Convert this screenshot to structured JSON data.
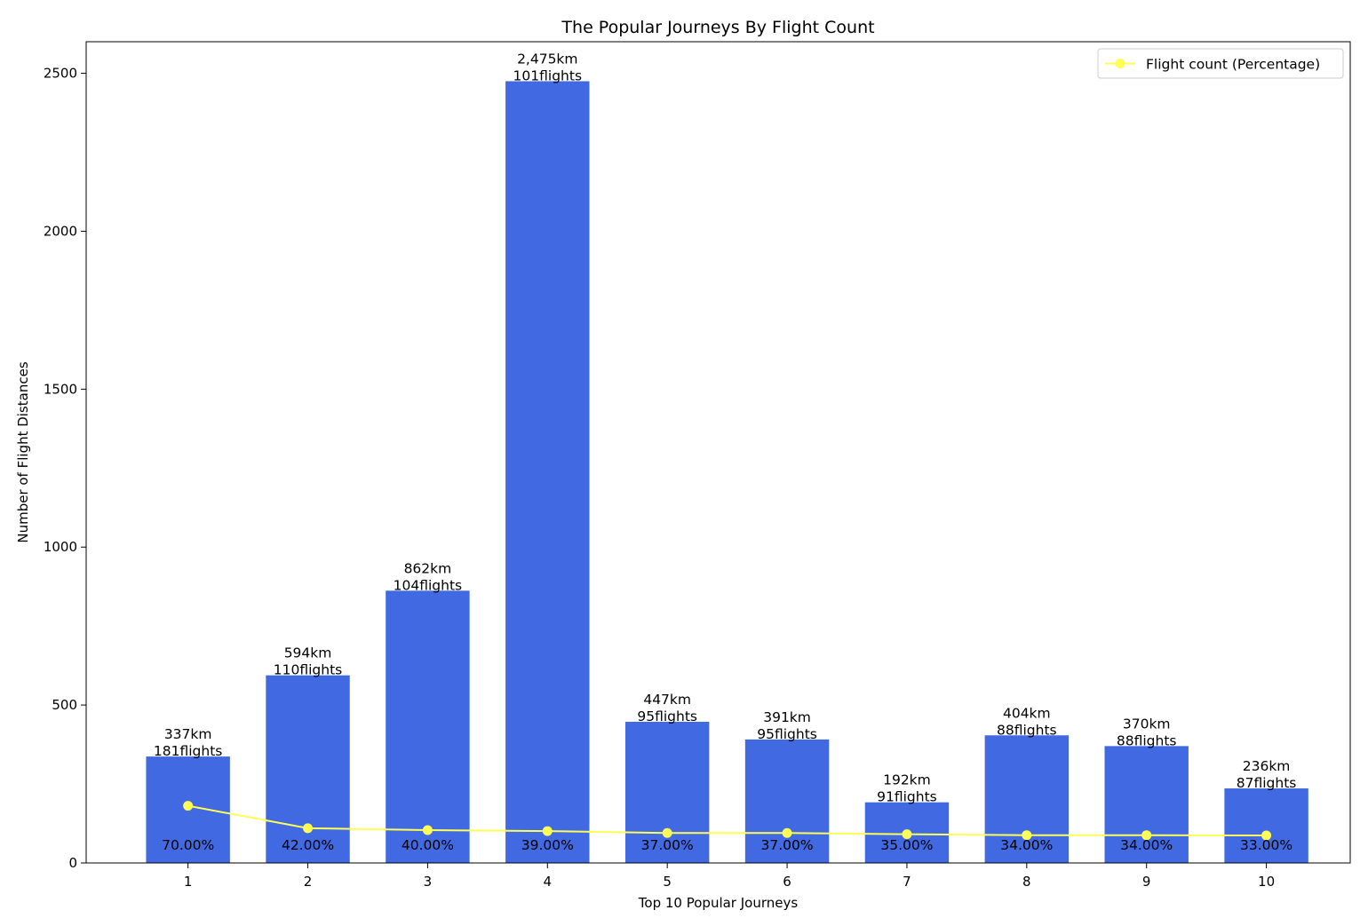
{
  "chart_data": {
    "type": "bar",
    "title": "The Popular Journeys By Flight Count",
    "xlabel": "Top 10 Popular Journeys",
    "ylabel": "Number of Flight Distances",
    "categories": [
      "1",
      "2",
      "3",
      "4",
      "5",
      "6",
      "7",
      "8",
      "9",
      "10"
    ],
    "ylim": [
      0,
      2600
    ],
    "yticks": [
      0,
      500,
      1000,
      1500,
      2000,
      2500
    ],
    "grid": false,
    "legend_placement": "top-right",
    "bar_color": "#4169e1",
    "line_color": "#ffff55",
    "series": [
      {
        "type": "bar",
        "values": [
          337,
          594,
          862,
          2475,
          447,
          391,
          192,
          404,
          370,
          236
        ],
        "distance_labels": [
          "337km",
          "594km",
          "862km",
          "2,475km",
          "447km",
          "391km",
          "192km",
          "404km",
          "370km",
          "236km"
        ],
        "flight_labels": [
          "181flights",
          "110flights",
          "104flights",
          "101flights",
          "95flights",
          "95flights",
          "91flights",
          "88flights",
          "88flights",
          "87flights"
        ]
      },
      {
        "type": "line",
        "name": "Flight count (Percentage)",
        "values": [
          181,
          110,
          104,
          101,
          95,
          95,
          91,
          88,
          88,
          87
        ],
        "percent_labels": [
          "70.00%",
          "42.00%",
          "40.00%",
          "39.00%",
          "37.00%",
          "37.00%",
          "35.00%",
          "34.00%",
          "34.00%",
          "33.00%"
        ]
      }
    ]
  }
}
